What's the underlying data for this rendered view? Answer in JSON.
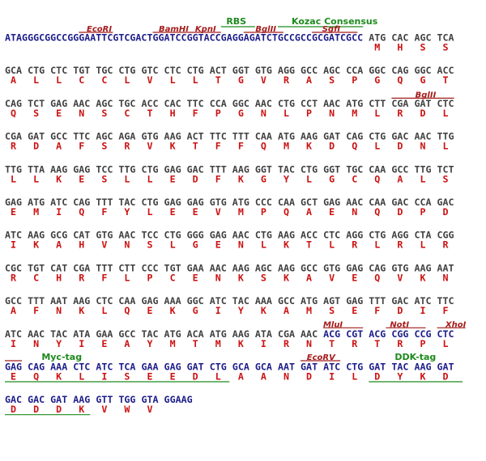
{
  "sequence": {
    "rows": [
      {
        "leader": {
          "text": "ATAGGGCGGCCGGGAATTCGTCGACTGGATCCGGTACCGAGGAGATCTGCCGCCGCGATCGCC",
          "color": "#1c1c8a"
        },
        "segments": [
          {
            "color": "#404040",
            "codons": [
              "ATG",
              "CAC",
              "AGC",
              "TCA"
            ]
          }
        ],
        "aa": [
          "M",
          "H",
          "S",
          "S"
        ]
      },
      {
        "segments": [
          {
            "color": "#404040",
            "codons": [
              "GCA",
              "CTG",
              "CTC",
              "TGT",
              "TGC",
              "CTG",
              "GTC",
              "CTC",
              "CTG",
              "ACT",
              "GGT",
              "GTG",
              "AGG",
              "GCC",
              "AGC",
              "CCA",
              "GGC",
              "CAG",
              "GGC",
              "ACC"
            ]
          }
        ],
        "aa": [
          "A",
          "L",
          "L",
          "C",
          "C",
          "L",
          "V",
          "L",
          "L",
          "T",
          "G",
          "V",
          "R",
          "A",
          "S",
          "P",
          "G",
          "Q",
          "G",
          "T"
        ]
      },
      {
        "segments": [
          {
            "color": "#404040",
            "codons": [
              "CAG",
              "TCT",
              "GAG",
              "AAC",
              "AGC",
              "TGC",
              "ACC",
              "CAC",
              "TTC",
              "CCA",
              "GGC",
              "AAC",
              "CTG",
              "CCT",
              "AAC",
              "ATG",
              "CTT",
              "CGA",
              "GAT",
              "CTC"
            ]
          }
        ],
        "aa": [
          "Q",
          "S",
          "E",
          "N",
          "S",
          "C",
          "T",
          "H",
          "F",
          "P",
          "G",
          "N",
          "L",
          "P",
          "N",
          "M",
          "L",
          "R",
          "D",
          "L"
        ]
      },
      {
        "segments": [
          {
            "color": "#404040",
            "codons": [
              "CGA",
              "GAT",
              "GCC",
              "TTC",
              "AGC",
              "AGA",
              "GTG",
              "AAG",
              "ACT",
              "TTC",
              "TTT",
              "CAA",
              "ATG",
              "AAG",
              "GAT",
              "CAG",
              "CTG",
              "GAC",
              "AAC",
              "TTG"
            ]
          }
        ],
        "aa": [
          "R",
          "D",
          "A",
          "F",
          "S",
          "R",
          "V",
          "K",
          "T",
          "F",
          "F",
          "Q",
          "M",
          "K",
          "D",
          "Q",
          "L",
          "D",
          "N",
          "L"
        ]
      },
      {
        "segments": [
          {
            "color": "#404040",
            "codons": [
              "TTG",
              "TTA",
              "AAG",
              "GAG",
              "TCC",
              "TTG",
              "CTG",
              "GAG",
              "GAC",
              "TTT",
              "AAG",
              "GGT",
              "TAC",
              "CTG",
              "GGT",
              "TGC",
              "CAA",
              "GCC",
              "TTG",
              "TCT"
            ]
          }
        ],
        "aa": [
          "L",
          "L",
          "K",
          "E",
          "S",
          "L",
          "L",
          "E",
          "D",
          "F",
          "K",
          "G",
          "Y",
          "L",
          "G",
          "C",
          "Q",
          "A",
          "L",
          "S"
        ]
      },
      {
        "segments": [
          {
            "color": "#404040",
            "codons": [
              "GAG",
              "ATG",
              "ATC",
              "CAG",
              "TTT",
              "TAC",
              "CTG",
              "GAG",
              "GAG",
              "GTG",
              "ATG",
              "CCC",
              "CAA",
              "GCT",
              "GAG",
              "AAC",
              "CAA",
              "GAC",
              "CCA",
              "GAC"
            ]
          }
        ],
        "aa": [
          "E",
          "M",
          "I",
          "Q",
          "F",
          "Y",
          "L",
          "E",
          "E",
          "V",
          "M",
          "P",
          "Q",
          "A",
          "E",
          "N",
          "Q",
          "D",
          "P",
          "D"
        ]
      },
      {
        "segments": [
          {
            "color": "#404040",
            "codons": [
              "ATC",
              "AAG",
              "GCG",
              "CAT",
              "GTG",
              "AAC",
              "TCC",
              "CTG",
              "GGG",
              "GAG",
              "AAC",
              "CTG",
              "AAG",
              "ACC",
              "CTC",
              "AGG",
              "CTG",
              "AGG",
              "CTA",
              "CGG"
            ]
          }
        ],
        "aa": [
          "I",
          "K",
          "A",
          "H",
          "V",
          "N",
          "S",
          "L",
          "G",
          "E",
          "N",
          "L",
          "K",
          "T",
          "L",
          "R",
          "L",
          "R",
          "L",
          "R"
        ]
      },
      {
        "segments": [
          {
            "color": "#404040",
            "codons": [
              "CGC",
              "TGT",
              "CAT",
              "CGA",
              "TTT",
              "CTT",
              "CCC",
              "TGT",
              "GAA",
              "AAC",
              "AAG",
              "AGC",
              "AAG",
              "GCC",
              "GTG",
              "GAG",
              "CAG",
              "GTG",
              "AAG",
              "AAT"
            ]
          }
        ],
        "aa": [
          "R",
          "C",
          "H",
          "R",
          "F",
          "L",
          "P",
          "C",
          "E",
          "N",
          "K",
          "S",
          "K",
          "A",
          "V",
          "E",
          "Q",
          "V",
          "K",
          "N"
        ]
      },
      {
        "segments": [
          {
            "color": "#404040",
            "codons": [
              "GCC",
              "TTT",
              "AAT",
              "AAG",
              "CTC",
              "CAA",
              "GAG",
              "AAA",
              "GGC",
              "ATC",
              "TAC",
              "AAA",
              "GCC",
              "ATG",
              "AGT",
              "GAG",
              "TTT",
              "GAC",
              "ATC",
              "TTC"
            ]
          }
        ],
        "aa": [
          "A",
          "F",
          "N",
          "K",
          "L",
          "Q",
          "E",
          "K",
          "G",
          "I",
          "Y",
          "K",
          "A",
          "M",
          "S",
          "E",
          "F",
          "D",
          "I",
          "F"
        ]
      },
      {
        "segments": [
          {
            "color": "#404040",
            "codons": [
              "ATC",
              "AAC",
              "TAC",
              "ATA",
              "GAA",
              "GCC",
              "TAC",
              "ATG",
              "ACA",
              "ATG",
              "AAG",
              "ATA",
              "CGA",
              "AAC"
            ]
          },
          {
            "color": "#1c1c8a",
            "codons": [
              "ACG",
              "CGT",
              "ACG",
              "CGG",
              "CCG",
              "CTC"
            ]
          }
        ],
        "aa": [
          "I",
          "N",
          "Y",
          "I",
          "E",
          "A",
          "Y",
          "M",
          "T",
          "M",
          "K",
          "I",
          "R",
          "N",
          "T",
          "R",
          "T",
          "R",
          "P",
          "L"
        ]
      },
      {
        "segments": [
          {
            "color": "#1c1c8a",
            "codons": [
              "GAG",
              "CAG",
              "AAA",
              "CTC",
              "ATC",
              "TCA",
              "GAA",
              "GAG",
              "GAT",
              "CTG",
              "GCA",
              "GCA",
              "AAT",
              "GAT",
              "ATC",
              "CTG",
              "GAT",
              "TAC",
              "AAG",
              "GAT"
            ]
          }
        ],
        "aa": [
          "E",
          "Q",
          "K",
          "L",
          "I",
          "S",
          "E",
          "E",
          "D",
          "L",
          "A",
          "A",
          "N",
          "D",
          "I",
          "L",
          "D",
          "Y",
          "K",
          "D"
        ]
      },
      {
        "segments": [
          {
            "color": "#1c1c8a",
            "codons": [
              "GAC",
              "GAC",
              "GAT",
              "AAG",
              "GTT",
              "TGG",
              "GTA",
              "GGAAG"
            ]
          }
        ],
        "aa": [
          "D",
          "D",
          "D",
          "K",
          "V",
          "W",
          "V"
        ]
      }
    ],
    "aa_color": "#cc1111"
  },
  "annotations": [
    {
      "label": "RBS",
      "color": "#1e8a1e"
    },
    {
      "label": "Kozac Consensus",
      "color": "#1e8a1e"
    },
    {
      "label": "EcoRI",
      "color": "#a51c1c"
    },
    {
      "label": "BamHI",
      "color": "#a51c1c"
    },
    {
      "label": "KpnI",
      "color": "#a51c1c"
    },
    {
      "label": "BglII",
      "color": "#a51c1c"
    },
    {
      "label": "SgfI",
      "color": "#a51c1c"
    },
    {
      "label": "BglII",
      "color": "#a51c1c"
    },
    {
      "label": "MluI",
      "color": "#a51c1c"
    },
    {
      "label": "NotI",
      "color": "#a51c1c"
    },
    {
      "label": "XhoI",
      "color": "#a51c1c"
    },
    {
      "label": "Myc-tag",
      "color": "#1e8a1e"
    },
    {
      "label": "EcoRV",
      "color": "#a51c1c"
    },
    {
      "label": "DDK-tag",
      "color": "#1e8a1e"
    }
  ]
}
